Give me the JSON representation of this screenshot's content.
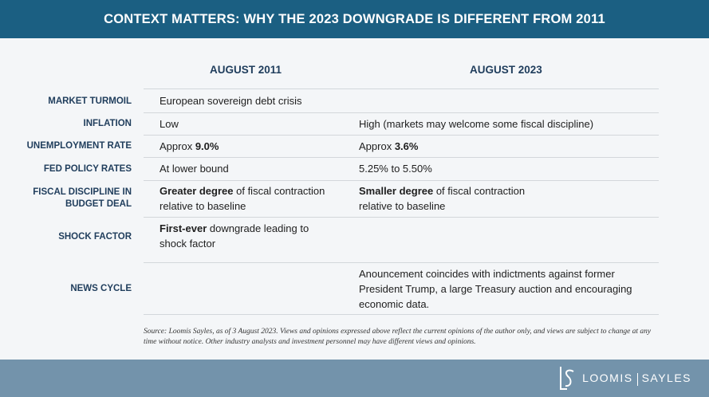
{
  "header": {
    "title": "CONTEXT MATTERS: WHY THE 2023 DOWNGRADE IS DIFFERENT FROM 2011"
  },
  "columns": {
    "col_2011": "AUGUST 2011",
    "col_2023": "AUGUST 2023"
  },
  "rows": [
    {
      "label": "MARKET TURMOIL",
      "y2011": [
        {
          "t": "European sovereign debt crisis",
          "b": false
        }
      ],
      "y2023": []
    },
    {
      "label": "INFLATION",
      "y2011": [
        {
          "t": "Low",
          "b": false
        }
      ],
      "y2023": [
        {
          "t": "High (markets may welcome some fiscal discipline)",
          "b": false
        }
      ]
    },
    {
      "label": "UNEMPLOYMENT RATE",
      "y2011": [
        {
          "t": "Approx ",
          "b": false
        },
        {
          "t": "9.0%",
          "b": true
        }
      ],
      "y2023": [
        {
          "t": "Approx ",
          "b": false
        },
        {
          "t": "3.6%",
          "b": true
        }
      ]
    },
    {
      "label": "FED POLICY RATES",
      "y2011": [
        {
          "t": "At lower bound",
          "b": false
        }
      ],
      "y2023": [
        {
          "t": "5.25% to 5.50%",
          "b": false
        }
      ]
    },
    {
      "label": "FISCAL DISCIPLINE IN BUDGET DEAL",
      "y2011": [
        {
          "t": "Greater degree",
          "b": true
        },
        {
          "t": " of fiscal contraction relative to baseline",
          "b": false
        }
      ],
      "y2023": [
        {
          "t": "Smaller degree",
          "b": true
        },
        {
          "t": " of fiscal contraction relative to baseline",
          "b": false
        }
      ]
    },
    {
      "label": "SHOCK FACTOR",
      "y2011": [
        {
          "t": "First-ever",
          "b": true
        },
        {
          "t": " downgrade leading to shock factor",
          "b": false
        }
      ],
      "y2023": []
    },
    {
      "label": "NEWS CYCLE",
      "y2011": [],
      "y2023": [
        {
          "t": "Anouncement coincides with indictments against former President Trump,  a large Treasury auction and encouraging economic data.",
          "b": false
        }
      ]
    }
  ],
  "source_note": "Source: Loomis Sayles, as of 3 August 2023. Views and opinions expressed above reflect the current opinions of the author only, and views are subject to change at any time without notice. Other industry analysts and investment personnel may have different views and opinions.",
  "logo": {
    "left": "LOOMIS",
    "right": "SAYLES"
  }
}
